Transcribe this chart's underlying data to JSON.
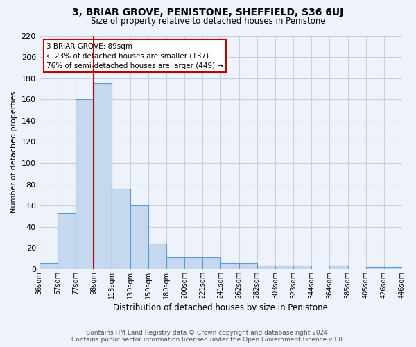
{
  "title": "3, BRIAR GROVE, PENISTONE, SHEFFIELD, S36 6UJ",
  "subtitle": "Size of property relative to detached houses in Penistone",
  "xlabel": "Distribution of detached houses by size in Penistone",
  "ylabel": "Number of detached properties",
  "bar_values": [
    6,
    53,
    160,
    175,
    76,
    60,
    24,
    11,
    11,
    11,
    6,
    6,
    3,
    3,
    3,
    0,
    3,
    0,
    2,
    2
  ],
  "tick_labels": [
    "36sqm",
    "57sqm",
    "77sqm",
    "98sqm",
    "118sqm",
    "139sqm",
    "159sqm",
    "180sqm",
    "200sqm",
    "221sqm",
    "241sqm",
    "262sqm",
    "282sqm",
    "303sqm",
    "323sqm",
    "344sqm",
    "364sqm",
    "385sqm",
    "405sqm",
    "426sqm",
    "446sqm"
  ],
  "bar_color": "#c5d8f0",
  "bar_edge_color": "#5b9bd5",
  "grid_color": "#c8d0e0",
  "background_color": "#eef2fa",
  "vline_x": 3,
  "vline_color": "#c00000",
  "annotation_title": "3 BRIAR GROVE: 89sqm",
  "annotation_line1": "← 23% of detached houses are smaller (137)",
  "annotation_line2": "76% of semi-detached houses are larger (449) →",
  "annotation_box_color": "#ffffff",
  "annotation_border_color": "#c00000",
  "footer_line1": "Contains HM Land Registry data © Crown copyright and database right 2024.",
  "footer_line2": "Contains public sector information licensed under the Open Government Licence v3.0.",
  "ylim": [
    0,
    220
  ],
  "yticks": [
    0,
    20,
    40,
    60,
    80,
    100,
    120,
    140,
    160,
    180,
    200,
    220
  ]
}
